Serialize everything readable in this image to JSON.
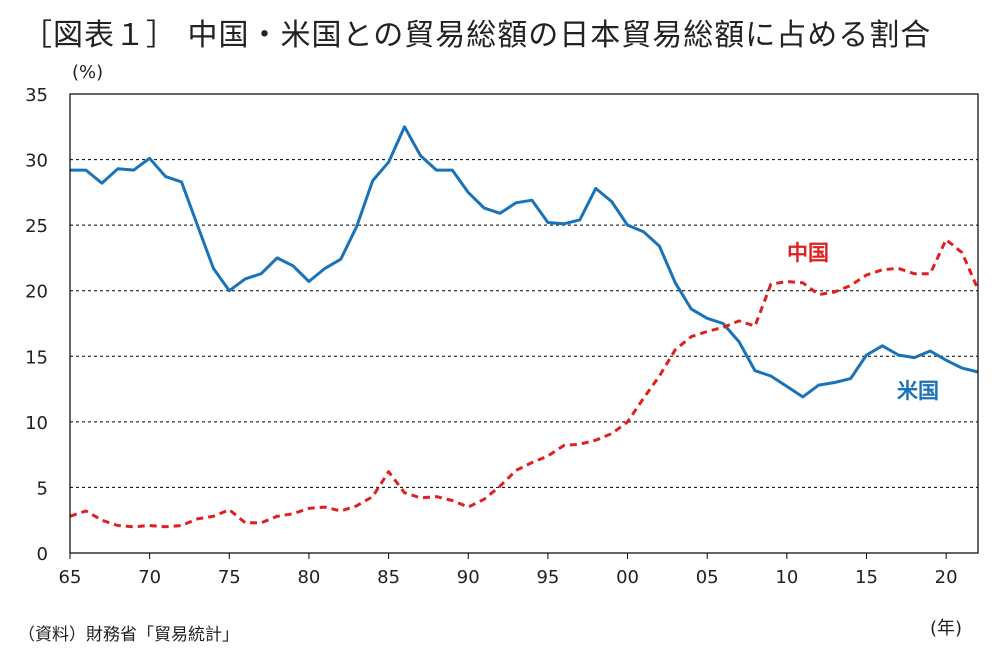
{
  "header": {
    "title": "［図表１］ 中国・米国との貿易総額の日本貿易総額に占める割合"
  },
  "axes": {
    "y_unit": "(%)",
    "x_unit": "(年)"
  },
  "footer": {
    "source": "（資料）財務省「貿易統計」"
  },
  "colors": {
    "us": "#1a72b8",
    "china": "#e02020",
    "grid": "#000000"
  },
  "chart_data": {
    "type": "line",
    "title": "［図表１］ 中国・米国との貿易総額の日本貿易総額に占める割合",
    "xlabel": "(年)",
    "ylabel": "(%)",
    "xlim": [
      1965,
      2022
    ],
    "ylim": [
      0,
      35
    ],
    "yticks": [
      0,
      5,
      10,
      15,
      20,
      25,
      30,
      35
    ],
    "xticks": [
      1965,
      1970,
      1975,
      1980,
      1985,
      1990,
      1995,
      2000,
      2005,
      2010,
      2015,
      2020
    ],
    "xtick_labels": [
      "65",
      "70",
      "75",
      "80",
      "85",
      "90",
      "95",
      "00",
      "05",
      "10",
      "15",
      "20"
    ],
    "grid": "horizontal dashed",
    "years": [
      1965,
      1966,
      1967,
      1968,
      1969,
      1970,
      1971,
      1972,
      1973,
      1974,
      1975,
      1976,
      1977,
      1978,
      1979,
      1980,
      1981,
      1982,
      1983,
      1984,
      1985,
      1986,
      1987,
      1988,
      1989,
      1990,
      1991,
      1992,
      1993,
      1994,
      1995,
      1996,
      1997,
      1998,
      1999,
      2000,
      2001,
      2002,
      2003,
      2004,
      2005,
      2006,
      2007,
      2008,
      2009,
      2010,
      2011,
      2012,
      2013,
      2014,
      2015,
      2016,
      2017,
      2018,
      2019,
      2020,
      2021,
      2022
    ],
    "series": [
      {
        "name": "米国",
        "style": "solid",
        "values": [
          29.2,
          29.2,
          28.2,
          29.3,
          29.2,
          30.1,
          28.7,
          28.3,
          25.0,
          21.7,
          20.0,
          20.9,
          21.3,
          22.5,
          21.9,
          20.7,
          21.7,
          22.4,
          24.9,
          28.4,
          29.8,
          32.5,
          30.3,
          29.2,
          29.2,
          27.5,
          26.3,
          25.9,
          26.7,
          26.9,
          25.2,
          25.1,
          25.4,
          27.8,
          26.8,
          25.0,
          24.5,
          23.4,
          20.6,
          18.6,
          17.9,
          17.5,
          16.1,
          13.9,
          13.5,
          12.7,
          11.9,
          12.8,
          13.0,
          13.3,
          15.1,
          15.8,
          15.1,
          14.9,
          15.4,
          14.7,
          14.1,
          13.8
        ]
      },
      {
        "name": "中国",
        "style": "dashed",
        "values": [
          2.8,
          3.2,
          2.5,
          2.1,
          2.0,
          2.1,
          2.0,
          2.1,
          2.6,
          2.8,
          3.3,
          2.3,
          2.3,
          2.8,
          3.0,
          3.4,
          3.5,
          3.2,
          3.6,
          4.3,
          6.2,
          4.6,
          4.2,
          4.3,
          4.0,
          3.5,
          4.1,
          5.1,
          6.3,
          6.9,
          7.4,
          8.2,
          8.3,
          8.6,
          9.1,
          10.0,
          11.8,
          13.5,
          15.5,
          16.5,
          16.9,
          17.2,
          17.7,
          17.3,
          20.5,
          20.7,
          20.6,
          19.7,
          19.9,
          20.4,
          21.2,
          21.6,
          21.7,
          21.3,
          21.3,
          23.9,
          22.9,
          20.1
        ]
      }
    ],
    "annotations": [
      {
        "text": "中国",
        "series": "中国"
      },
      {
        "text": "米国",
        "series": "米国"
      }
    ]
  }
}
